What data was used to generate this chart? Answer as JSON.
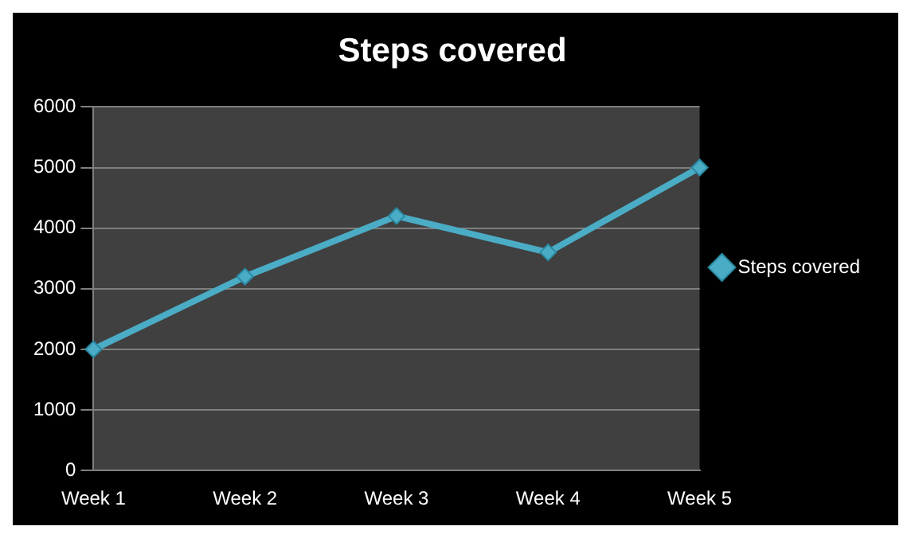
{
  "chart_data": {
    "type": "line",
    "title": "Steps covered",
    "categories": [
      "Week 1",
      "Week 2",
      "Week 3",
      "Week 4",
      "Week 5"
    ],
    "series": [
      {
        "name": "Steps covered",
        "color": "#4bacc6",
        "values": [
          2000,
          3200,
          4200,
          3600,
          5000
        ]
      }
    ],
    "ylim": [
      0,
      6000
    ],
    "yticks": [
      0,
      1000,
      2000,
      3000,
      4000,
      5000,
      6000
    ],
    "grid": "y",
    "legend": "right",
    "marker": "diamond"
  }
}
